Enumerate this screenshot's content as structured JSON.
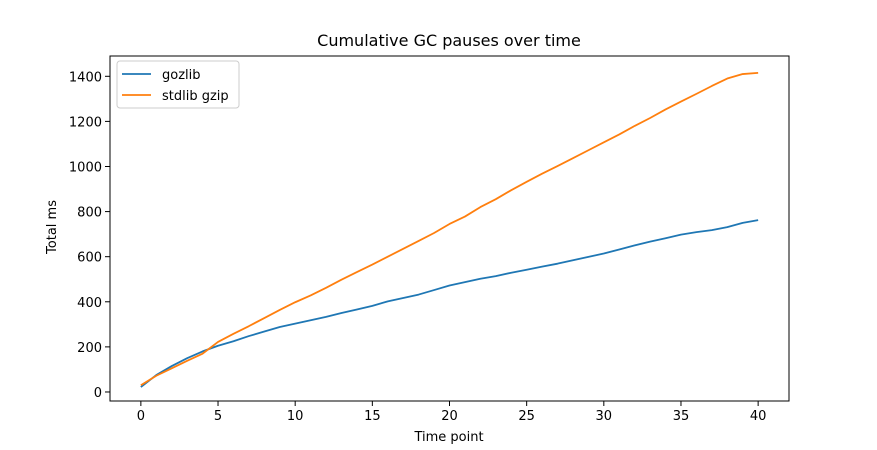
{
  "chart_data": {
    "type": "line",
    "title": "Cumulative GC pauses over time",
    "xlabel": "Time point",
    "ylabel": "Total ms",
    "xlim": [
      -2,
      42
    ],
    "ylim": [
      -40,
      1490
    ],
    "xticks": [
      0,
      5,
      10,
      15,
      20,
      25,
      30,
      35,
      40
    ],
    "yticks": [
      0,
      200,
      400,
      600,
      800,
      1000,
      1200,
      1400
    ],
    "grid": false,
    "legend_position": "upper-left",
    "x": [
      0,
      1,
      2,
      3,
      4,
      5,
      6,
      7,
      8,
      9,
      10,
      11,
      12,
      13,
      14,
      15,
      16,
      17,
      18,
      19,
      20,
      21,
      22,
      23,
      24,
      25,
      26,
      27,
      28,
      29,
      30,
      31,
      32,
      33,
      34,
      35,
      36,
      37,
      38,
      39,
      40
    ],
    "series": [
      {
        "name": "gozlib",
        "color": "#1f77b4",
        "values": [
          22,
          75,
          115,
          150,
          180,
          205,
          225,
          248,
          268,
          288,
          303,
          318,
          333,
          350,
          366,
          382,
          402,
          417,
          432,
          452,
          472,
          487,
          502,
          514,
          529,
          542,
          556,
          569,
          584,
          599,
          614,
          632,
          650,
          667,
          682,
          698,
          709,
          718,
          731,
          750,
          762
        ]
      },
      {
        "name": "stdlib gzip",
        "color": "#ff7f0e",
        "values": [
          30,
          72,
          105,
          138,
          170,
          222,
          258,
          292,
          328,
          364,
          398,
          428,
          462,
          498,
          532,
          565,
          600,
          635,
          670,
          705,
          745,
          778,
          820,
          855,
          895,
          932,
          968,
          1002,
          1037,
          1072,
          1107,
          1142,
          1180,
          1215,
          1253,
          1288,
          1322,
          1357,
          1390,
          1410,
          1415
        ]
      }
    ]
  }
}
